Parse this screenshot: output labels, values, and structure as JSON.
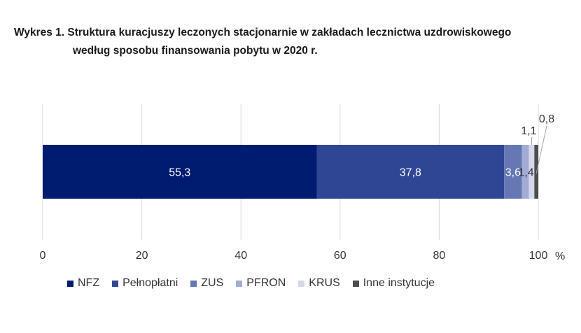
{
  "title_line1": "Wykres 1. Struktura kuracjuszy leczonych stacjonarnie w zakładach lecznictwa uzdrowiskowego",
  "title_line2": "według sposobu finansowania pobytu w 2020 r.",
  "chart_data": {
    "type": "bar",
    "orientation": "horizontal",
    "stacked": true,
    "unit": "%",
    "xlim": [
      0,
      100
    ],
    "xticks": [
      "0",
      "20",
      "40",
      "60",
      "80",
      "100"
    ],
    "grid": true,
    "legend_position": "bottom",
    "series": [
      {
        "name": "NFZ",
        "value": 55.3,
        "label": "55,3",
        "color": "#001c71"
      },
      {
        "name": "Pełnopłatni",
        "value": 37.8,
        "label": "37,8",
        "color": "#2e4694"
      },
      {
        "name": "ZUS",
        "value": 3.6,
        "label": "3,6",
        "color": "#6578b4"
      },
      {
        "name": "PFRON",
        "value": 1.4,
        "label": "1,4",
        "color": "#a2acd3"
      },
      {
        "name": "KRUS",
        "value": 1.1,
        "label": "1,1",
        "color": "#d3d8ea"
      },
      {
        "name": "Inne instytucje",
        "value": 0.8,
        "label": "0,8",
        "color": "#4d4d4d"
      }
    ]
  }
}
